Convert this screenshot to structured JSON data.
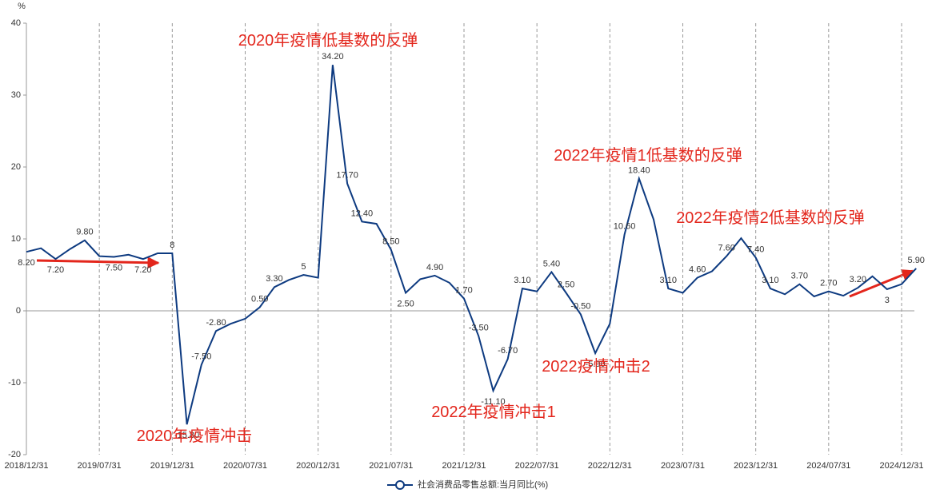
{
  "chart_data": {
    "type": "line",
    "y_unit": "%",
    "categories": [
      "2018/12/31",
      null,
      null,
      null,
      null,
      "2019/07/31",
      null,
      null,
      null,
      null,
      "2019/12/31",
      null,
      null,
      null,
      null,
      "2020/07/31",
      null,
      null,
      null,
      null,
      "2020/12/31",
      null,
      null,
      null,
      null,
      "2021/07/31",
      null,
      null,
      null,
      null,
      "2021/12/31",
      null,
      null,
      null,
      null,
      "2022/07/31",
      null,
      null,
      null,
      null,
      "2022/12/31",
      null,
      null,
      null,
      null,
      "2023/07/31",
      null,
      null,
      null,
      null,
      "2023/12/31",
      null,
      null,
      null,
      null,
      "2024/07/31",
      null,
      null,
      null,
      null,
      "2024/12/31",
      null
    ],
    "series": [
      {
        "name": "社会消费品零售总额:当月同比(%)",
        "color": "#0d3a80",
        "values": [
          8.2,
          8.7,
          7.2,
          8.6,
          9.8,
          7.6,
          7.5,
          7.8,
          7.2,
          8.0,
          8.0,
          -15.8,
          -7.5,
          -2.8,
          -1.8,
          -1.1,
          0.5,
          3.3,
          4.3,
          5.0,
          4.6,
          34.2,
          17.7,
          12.4,
          12.1,
          8.5,
          2.5,
          4.4,
          4.9,
          3.9,
          1.7,
          -3.5,
          -11.1,
          -6.7,
          3.1,
          2.7,
          5.4,
          2.5,
          -0.5,
          -5.9,
          -1.8,
          10.6,
          18.4,
          12.7,
          3.1,
          2.5,
          4.6,
          5.5,
          7.6,
          10.1,
          7.4,
          3.1,
          2.3,
          3.7,
          2.0,
          2.7,
          2.1,
          3.2,
          4.8,
          3.0,
          3.7,
          5.9
        ],
        "value_labels": [
          "8.20",
          null,
          "7.20",
          null,
          "9.80",
          null,
          "7.50",
          null,
          "7.20",
          null,
          "8",
          "-15.80",
          "-7.50",
          "-2.80",
          null,
          null,
          "0.50",
          "3.30",
          null,
          "5",
          null,
          "34.20",
          "17.70",
          "12.40",
          null,
          "8.50",
          "2.50",
          null,
          "4.90",
          null,
          "1.70",
          "-3.50",
          "-11.10",
          "-6.70",
          "3.10",
          null,
          "5.40",
          "2.50",
          "-0.50",
          "-5.90",
          null,
          "10.60",
          "18.40",
          null,
          "3.10",
          null,
          "4.60",
          null,
          "7.60",
          null,
          "7.40",
          "3.10",
          null,
          "3.70",
          null,
          "2.70",
          null,
          "3.20",
          null,
          "3",
          null,
          "5.90"
        ]
      }
    ],
    "ylim": [
      -20,
      40
    ],
    "yticks": [
      -20,
      -10,
      0,
      10,
      20,
      30,
      40
    ],
    "grid": true,
    "legend": "bottom",
    "annotations": [
      "2020年疫情低基数的反弹",
      "2020年疫情冲击",
      "2022年疫情冲击1",
      "2022疫情冲击2",
      "2022年疫情1低基数的反弹",
      "2022年疫情2低基数的反弹"
    ],
    "annotation_color": "#e3261c"
  }
}
